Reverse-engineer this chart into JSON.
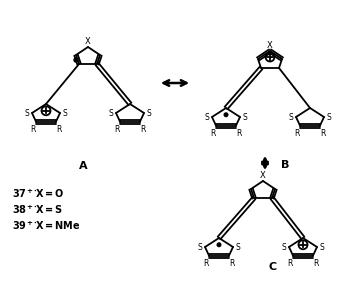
{
  "background": "#ffffff",
  "line_color": "#000000",
  "line_width": 1.3,
  "dpi": 100,
  "figsize": [
    3.57,
    3.03
  ],
  "label_A": "A",
  "label_B": "B",
  "label_C": "C",
  "legend": [
    [
      "37",
      "X =O"
    ],
    [
      "38",
      "X =S"
    ],
    [
      "39",
      "X =NMe"
    ]
  ]
}
